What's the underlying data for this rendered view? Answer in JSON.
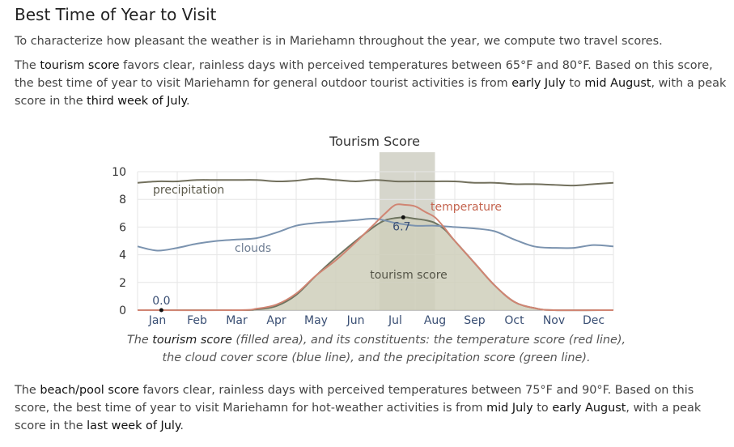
{
  "heading": "Best Time of Year to Visit",
  "intro": "To characterize how pleasant the weather is in Mariehamn throughout the year, we compute two travel scores.",
  "tourism_paragraph": {
    "p1": "The ",
    "score_name": "tourism score",
    "p2": " favors clear, rainless days with perceived temperatures between 65°F and 80°F. Based on this score, the best time of year to visit Mariehamn for general outdoor tourist activities is from ",
    "start": "early July",
    "p3": " to ",
    "end": "mid August",
    "p4": ", with a peak score in the ",
    "peak": "third week of July",
    "p5": "."
  },
  "caption": {
    "c1": "The ",
    "score_name": "tourism score",
    "c2": " (filled area), and its constituents: the temperature score (red line), the cloud cover score (blue line), and the precipitation score (green line)."
  },
  "beach_paragraph": {
    "p1": "The ",
    "score_name": "beach/pool score",
    "p2": " favors clear, rainless days with perceived temperatures between 75°F and 90°F. Based on this score, the best time of year to visit Mariehamn for hot-weather activities is from ",
    "start": "mid July",
    "p3": " to ",
    "end": "early August",
    "p4": ", with a peak score in the ",
    "peak": "last week of July",
    "p5": "."
  },
  "chart_data": {
    "type": "area",
    "title": "Tourism Score",
    "categories": [
      "Jan",
      "Feb",
      "Mar",
      "Apr",
      "May",
      "Jun",
      "Jul",
      "Aug",
      "Sep",
      "Oct",
      "Nov",
      "Dec"
    ],
    "ylim": [
      0,
      10
    ],
    "yticks": [
      0,
      2,
      4,
      6,
      8,
      10
    ],
    "xlim": [
      0,
      12
    ],
    "grid": true,
    "best_period": [
      6.1,
      7.5
    ],
    "series_labels": {
      "precipitation": "precipitation",
      "clouds": "clouds",
      "temperature": "temperature",
      "tourism": "tourism score"
    },
    "annotations": {
      "min_label": "0.0",
      "min_x": 0.6,
      "min_value": 0.0,
      "max_label": "6.7",
      "max_x": 6.7,
      "max_value": 6.7
    },
    "colors": {
      "tourism_fill": "#cfcfbb",
      "tourism_line": "#6e7460",
      "precipitation": "#72705d",
      "clouds": "#7b93af",
      "temperature": "#d08573",
      "best_band": "#d6d6cc",
      "axis_labels": "#3a4f74"
    },
    "series": [
      {
        "key": "precipitation",
        "x": [
          0,
          0.5,
          1,
          1.5,
          2,
          2.5,
          3,
          3.5,
          4,
          4.5,
          5,
          5.5,
          6,
          6.5,
          7,
          7.5,
          8,
          8.5,
          9,
          9.5,
          10,
          10.5,
          11,
          11.5,
          12
        ],
        "values": [
          9.2,
          9.3,
          9.3,
          9.4,
          9.4,
          9.4,
          9.4,
          9.3,
          9.35,
          9.5,
          9.4,
          9.3,
          9.4,
          9.3,
          9.3,
          9.3,
          9.3,
          9.2,
          9.2,
          9.1,
          9.1,
          9.05,
          9.0,
          9.1,
          9.2
        ]
      },
      {
        "key": "clouds",
        "x": [
          0,
          0.5,
          1,
          1.5,
          2,
          2.5,
          3,
          3.5,
          4,
          4.5,
          5,
          5.5,
          6,
          6.5,
          7,
          7.5,
          8,
          8.5,
          9,
          9.5,
          10,
          10.5,
          11,
          11.5,
          12
        ],
        "values": [
          4.6,
          4.3,
          4.5,
          4.8,
          5.0,
          5.1,
          5.2,
          5.6,
          6.1,
          6.3,
          6.4,
          6.5,
          6.6,
          6.3,
          6.1,
          6.1,
          6.0,
          5.9,
          5.7,
          5.1,
          4.6,
          4.5,
          4.5,
          4.7,
          4.6
        ]
      },
      {
        "key": "temperature",
        "x": [
          0,
          2.5,
          3,
          3.5,
          4,
          4.5,
          5,
          5.5,
          6,
          6.25,
          6.5,
          6.75,
          7,
          7.25,
          7.5,
          7.75,
          8,
          8.5,
          9,
          9.5,
          10,
          10.5,
          12
        ],
        "values": [
          0,
          0,
          0.1,
          0.4,
          1.2,
          2.5,
          3.6,
          4.9,
          6.3,
          7.0,
          7.6,
          7.6,
          7.5,
          7.1,
          6.7,
          5.9,
          5.0,
          3.4,
          1.8,
          0.6,
          0.15,
          0,
          0
        ]
      },
      {
        "key": "tourism",
        "x": [
          0,
          2.5,
          3,
          3.5,
          4,
          4.5,
          5,
          5.5,
          6,
          6.25,
          6.5,
          6.75,
          7,
          7.25,
          7.5,
          7.75,
          8,
          8.5,
          9,
          9.5,
          10,
          10.5,
          12
        ],
        "values": [
          0,
          0,
          0.05,
          0.3,
          1.1,
          2.5,
          3.8,
          5.0,
          6.1,
          6.5,
          6.65,
          6.7,
          6.6,
          6.5,
          6.3,
          5.8,
          5.0,
          3.4,
          1.8,
          0.6,
          0.15,
          0,
          0
        ]
      }
    ]
  }
}
